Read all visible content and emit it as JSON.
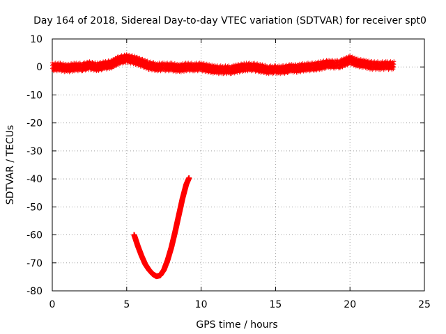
{
  "chart_data": {
    "type": "scatter",
    "title": "Day 164 of 2018, Sidereal Day-to-day VTEC variation (SDTVAR) for receiver spt0",
    "xlabel": "GPS time / hours",
    "ylabel": "SDTVAR / TECUs",
    "xlim": [
      0,
      25
    ],
    "ylim": [
      -80,
      10
    ],
    "xticks": [
      0,
      5,
      10,
      15,
      20,
      25
    ],
    "yticks": [
      10,
      0,
      -10,
      -20,
      -30,
      -40,
      -50,
      -60,
      -70,
      -80
    ],
    "grid": true,
    "marker": "+",
    "series_color": "#ff0000",
    "series": [
      {
        "name": "near-zero band",
        "x": [
          0.0,
          0.5,
          1.0,
          1.5,
          2.0,
          2.5,
          3.0,
          3.5,
          4.0,
          4.5,
          5.0,
          5.5,
          6.0,
          6.5,
          7.0,
          7.5,
          8.0,
          8.5,
          9.0,
          9.5,
          10.0,
          10.5,
          11.0,
          11.5,
          12.0,
          12.5,
          13.0,
          13.5,
          14.0,
          14.5,
          15.0,
          15.5,
          16.0,
          16.5,
          17.0,
          17.5,
          18.0,
          18.5,
          19.0,
          19.3,
          20.0,
          20.5,
          21.0,
          21.5,
          22.0,
          22.5,
          23.0
        ],
        "y": [
          0,
          0,
          -0.5,
          0,
          0,
          0.5,
          0,
          0.5,
          1,
          2.5,
          3,
          2.5,
          1.5,
          0.5,
          0,
          0,
          0,
          -0.5,
          0,
          0,
          0,
          -0.5,
          -1,
          -1,
          -1,
          -0.5,
          0,
          0,
          -0.5,
          -1,
          -1,
          -1,
          -0.5,
          -0.5,
          0,
          0,
          0.5,
          1,
          1,
          1,
          2.5,
          1.5,
          1,
          0.5,
          0.5,
          0.5,
          0.5
        ]
      },
      {
        "name": "dip arc",
        "x": [
          5.5,
          5.75,
          6.0,
          6.25,
          6.5,
          6.75,
          7.0,
          7.25,
          7.5,
          7.75,
          8.0,
          8.25,
          8.5,
          8.75,
          9.0,
          9.2
        ],
        "y": [
          -60,
          -64,
          -67.5,
          -70.5,
          -72.5,
          -74,
          -74.8,
          -74.5,
          -72.5,
          -69,
          -64.5,
          -59,
          -53,
          -47,
          -42,
          -39.5
        ]
      }
    ]
  }
}
